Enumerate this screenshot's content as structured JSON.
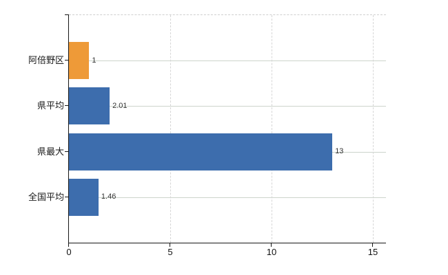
{
  "chart_data": {
    "type": "bar",
    "orientation": "horizontal",
    "categories": [
      "阿倍野区",
      "県平均",
      "県最大",
      "全国平均"
    ],
    "values": [
      1,
      2.01,
      13,
      1.46
    ],
    "value_labels": [
      "1",
      "2.01",
      "13",
      "1.46"
    ],
    "series_colors": [
      "#ee9a38",
      "#3d6dad",
      "#3d6dad",
      "#3d6dad"
    ],
    "xlim": [
      0,
      15
    ],
    "x_ticks": [
      0,
      5,
      10,
      15
    ],
    "x_tick_labels": [
      "0",
      "5",
      "10",
      "15"
    ],
    "legend": "none",
    "grid": "vertical dashed gridlines at x ticks, horizontal light lines at category centers"
  },
  "colors": {
    "bar_orange": "#ee9a38",
    "bar_blue": "#3d6dad",
    "axis": "#151515",
    "grid_vertical": "#d6d6d6",
    "grid_horizontal": "#ccd4cb",
    "background": "#ffffff",
    "value_text": "#333333",
    "label_text": "#1a1a1a"
  }
}
